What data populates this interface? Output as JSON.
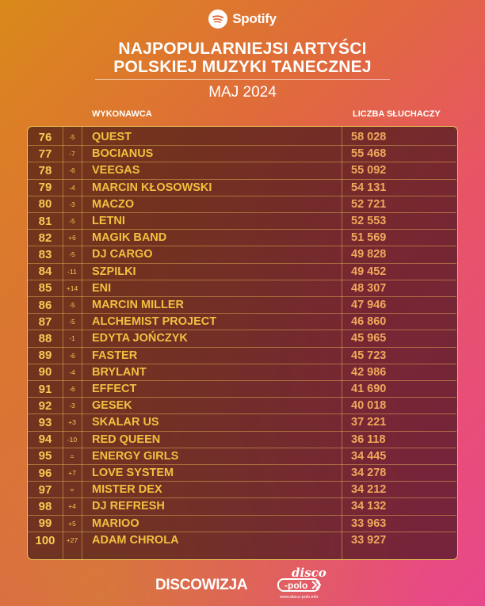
{
  "brand": {
    "name": "Spotify",
    "icon": "spotify-icon"
  },
  "title": {
    "line1": "NAJPOPULARNIEJSI ARTYŚCI",
    "line2": "POLSKIEJ MUZYKI TANECZNEJ"
  },
  "month": "MAJ 2024",
  "columns": {
    "artist": "WYKONAWCA",
    "listeners": "LICZBA SŁUCHACZY"
  },
  "rows": [
    {
      "rank": "76",
      "change": "-5",
      "artist": "QUEST",
      "listeners": "58 028"
    },
    {
      "rank": "77",
      "change": "-7",
      "artist": "BOCIANUS",
      "listeners": "55 468"
    },
    {
      "rank": "78",
      "change": "-6",
      "artist": "VEEGAS",
      "listeners": "55 092"
    },
    {
      "rank": "79",
      "change": "-4",
      "artist": "MARCIN KŁOSOWSKI",
      "listeners": "54 131"
    },
    {
      "rank": "80",
      "change": "-3",
      "artist": "MACZO",
      "listeners": "52 721"
    },
    {
      "rank": "81",
      "change": "-5",
      "artist": "LETNI",
      "listeners": "52 553"
    },
    {
      "rank": "82",
      "change": "+6",
      "artist": "MAGIK BAND",
      "listeners": "51 569"
    },
    {
      "rank": "83",
      "change": "-5",
      "artist": "DJ CARGO",
      "listeners": "49 828"
    },
    {
      "rank": "84",
      "change": "-11",
      "artist": "SZPILKI",
      "listeners": "49 452"
    },
    {
      "rank": "85",
      "change": "+14",
      "artist": "ENI",
      "listeners": "48 307"
    },
    {
      "rank": "86",
      "change": "-5",
      "artist": "MARCIN MILLER",
      "listeners": "47 946"
    },
    {
      "rank": "87",
      "change": "-5",
      "artist": "ALCHEMIST PROJECT",
      "listeners": "46 860"
    },
    {
      "rank": "88",
      "change": "-1",
      "artist": "EDYTA JOŃCZYK",
      "listeners": "45 965"
    },
    {
      "rank": "89",
      "change": "-6",
      "artist": "FASTER",
      "listeners": "45 723"
    },
    {
      "rank": "90",
      "change": "-4",
      "artist": "BRYLANT",
      "listeners": "42 986"
    },
    {
      "rank": "91",
      "change": "-6",
      "artist": "EFFECT",
      "listeners": "41 690"
    },
    {
      "rank": "92",
      "change": "-3",
      "artist": "GESEK",
      "listeners": "40 018"
    },
    {
      "rank": "93",
      "change": "+3",
      "artist": "SKALAR US",
      "listeners": "37 221"
    },
    {
      "rank": "94",
      "change": "-10",
      "artist": "RED QUEEN",
      "listeners": "36 118"
    },
    {
      "rank": "95",
      "change": "=",
      "artist": "ENERGY GIRLS",
      "listeners": "34 445"
    },
    {
      "rank": "96",
      "change": "+7",
      "artist": "LOVE SYSTEM",
      "listeners": "34 278"
    },
    {
      "rank": "97",
      "change": "=",
      "artist": "MISTER DEX",
      "listeners": "34 212"
    },
    {
      "rank": "98",
      "change": "+4",
      "artist": "DJ REFRESH",
      "listeners": "34 132"
    },
    {
      "rank": "99",
      "change": "+5",
      "artist": "MARIOO",
      "listeners": "33 963"
    },
    {
      "rank": "100",
      "change": "+27",
      "artist": "ADAM CHROLA",
      "listeners": "33 927"
    }
  ],
  "footer": {
    "brand": "DISCOWIZJA",
    "logo_icon": "disco-polo-logo",
    "logo_text": "disco polo",
    "logo_url_text": "www.disco-polo.info"
  },
  "colors": {
    "accent": "#f6ca52",
    "listeners": "#f0a85c",
    "border": "#f2c85a"
  }
}
